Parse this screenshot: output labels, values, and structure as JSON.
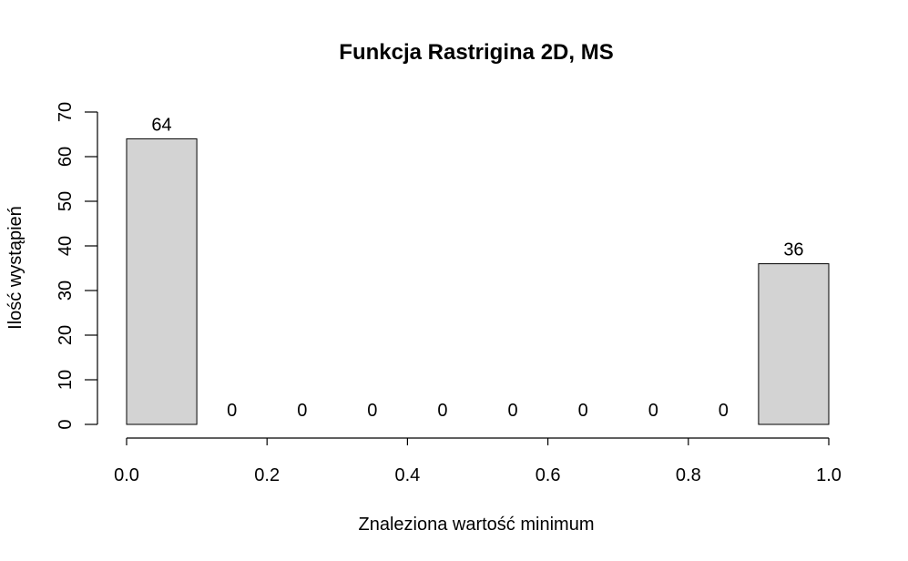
{
  "chart_data": {
    "type": "bar",
    "title": "Funkcja Rastrigina 2D, MS",
    "xlabel": "Znaleziona wartość minimum",
    "ylabel": "Ilość wystąpień",
    "bins": [
      {
        "from": 0.0,
        "to": 0.1,
        "value": 64
      },
      {
        "from": 0.1,
        "to": 0.2,
        "value": 0
      },
      {
        "from": 0.2,
        "to": 0.3,
        "value": 0
      },
      {
        "from": 0.3,
        "to": 0.4,
        "value": 0
      },
      {
        "from": 0.4,
        "to": 0.5,
        "value": 0
      },
      {
        "from": 0.5,
        "to": 0.6,
        "value": 0
      },
      {
        "from": 0.6,
        "to": 0.7,
        "value": 0
      },
      {
        "from": 0.7,
        "to": 0.8,
        "value": 0
      },
      {
        "from": 0.8,
        "to": 0.9,
        "value": 0
      },
      {
        "from": 0.9,
        "to": 1.0,
        "value": 36
      }
    ],
    "data_labels": [
      "64",
      "0",
      "0",
      "0",
      "0",
      "0",
      "0",
      "0",
      "0",
      "36"
    ],
    "xlim": [
      0.0,
      1.0
    ],
    "ylim": [
      0,
      70
    ],
    "x_ticks": [
      0.0,
      0.2,
      0.4,
      0.6,
      0.8,
      1.0
    ],
    "x_tick_labels": [
      "0.0",
      "0.2",
      "0.4",
      "0.6",
      "0.8",
      "1.0"
    ],
    "y_ticks": [
      0,
      10,
      20,
      30,
      40,
      50,
      60,
      70
    ],
    "y_tick_labels": [
      "0",
      "10",
      "20",
      "30",
      "40",
      "50",
      "60",
      "70"
    ],
    "grid": false,
    "bar_color": "#d3d3d3",
    "edge_color": "#000000"
  }
}
